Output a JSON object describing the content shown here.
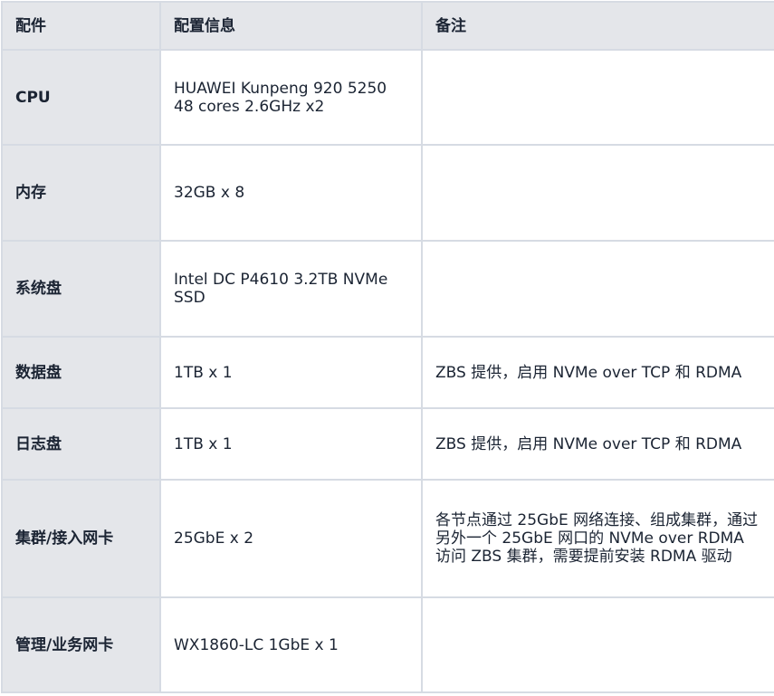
{
  "headers": [
    "配件",
    "配置信息",
    "备注"
  ],
  "rows": [
    {
      "part": "CPU",
      "config": "HUAWEI Kunpeng 920 5250 48 cores 2.6GHz x2",
      "note": ""
    },
    {
      "part": "内存",
      "config": "32GB x 8",
      "note": ""
    },
    {
      "part": "系统盘",
      "config": "Intel DC P4610 3.2TB NVMe SSD",
      "note": ""
    },
    {
      "part": "数据盘",
      "config": "1TB x 1",
      "note": "ZBS 提供，启用 NVMe over TCP 和 RDMA"
    },
    {
      "part": "日志盘",
      "config": "1TB x 1",
      "note": "ZBS 提供，启用 NVMe over TCP 和 RDMA"
    },
    {
      "part": "集群/接入网卡",
      "config": "25GbE x 2",
      "note": "各节点通过 25GbE 网络连接、组成集群，通过另外一个 25GbE 网口的 NVMe over RDMA 访问 ZBS 集群，需要提前安装 RDMA 驱动"
    },
    {
      "part": "管理/业务网卡",
      "config": "WX1860-LC 1GbE x 1",
      "note": ""
    }
  ]
}
